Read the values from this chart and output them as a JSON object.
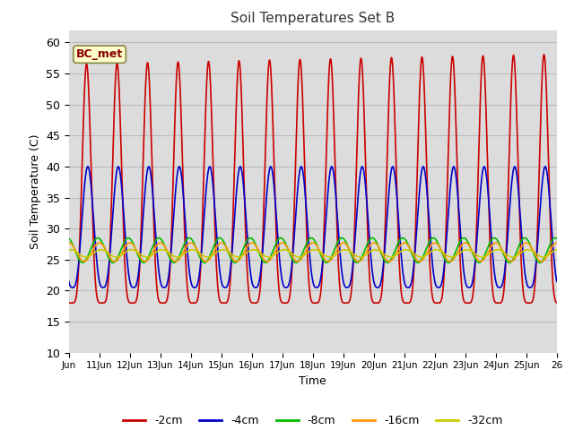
{
  "title": "Soil Temperatures Set B",
  "xlabel": "Time",
  "ylabel": "Soil Temperature (C)",
  "ylim": [
    10,
    62
  ],
  "yticks": [
    10,
    15,
    20,
    25,
    30,
    35,
    40,
    45,
    50,
    55,
    60
  ],
  "x_tick_labels": [
    "Jun",
    "11Jun",
    "12Jun",
    "13Jun",
    "14Jun",
    "15Jun",
    "16Jun",
    "17Jun",
    "18Jun",
    "19Jun",
    "20Jun",
    "21Jun",
    "22Jun",
    "23Jun",
    "24Jun",
    "25Jun",
    "26"
  ],
  "annotation_label": "BC_met",
  "bg_color": "#dcdcdc",
  "line_colors": {
    "-2cm": "#cc0000",
    "-4cm": "#0000cc",
    "-8cm": "#00bb00",
    "-16cm": "#ff9900",
    "-32cm": "#cccc00"
  },
  "n_days": 16,
  "points_per_day": 480
}
